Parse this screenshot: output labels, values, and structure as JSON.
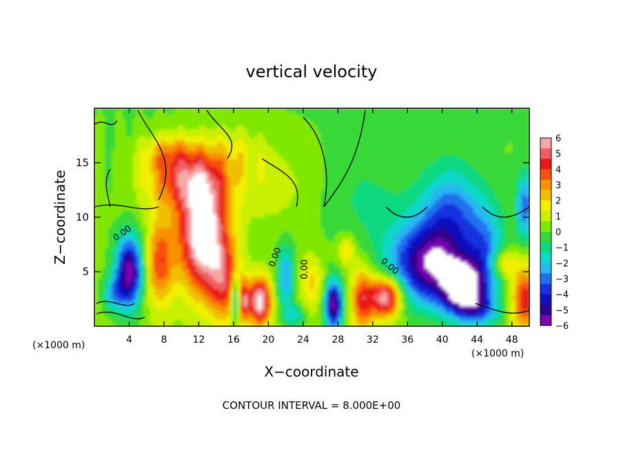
{
  "chart_data": {
    "type": "heatmap",
    "title": "vertical velocity",
    "xlabel": "X−coordinate",
    "ylabel": "Z−coordinate",
    "x_unit_left": "(×1000 m)",
    "x_unit_right": "(×1000 m)",
    "footer": "CONTOUR INTERVAL = 8.000E+00",
    "xlim": [
      0,
      50
    ],
    "ylim": [
      0,
      20
    ],
    "x_ticks": [
      "4",
      "8",
      "12",
      "16",
      "20",
      "24",
      "28",
      "32",
      "36",
      "40",
      "44",
      "48"
    ],
    "y_ticks": [
      "5",
      "10",
      "15"
    ],
    "contour_labels": [
      "0.00",
      "0.00",
      "0.00",
      "0.00"
    ],
    "colorbar": {
      "ticks": [
        "6",
        "5",
        "4",
        "3",
        "2",
        "1",
        "0",
        "−1",
        "−2",
        "−3",
        "−4",
        "−5",
        "−6"
      ],
      "colors": [
        "#f4a8a8",
        "#f06060",
        "#e81818",
        "#f85010",
        "#f89000",
        "#f0c000",
        "#f0f000",
        "#c8f000",
        "#80e800",
        "#38d838",
        "#10d880",
        "#10d8c8",
        "#28b8f0",
        "#2070f0",
        "#1830e0",
        "#1010c0",
        "#30008c",
        "#7a00b0"
      ]
    },
    "blobs": [
      {
        "x": 10.5,
        "z": 13.5,
        "rx": 4.5,
        "rz": 2.8,
        "w": 4.0
      },
      {
        "x": 8.5,
        "z": 16.0,
        "rx": 3.0,
        "rz": 1.8,
        "w": 2.0
      },
      {
        "x": 16.0,
        "z": 16.0,
        "rx": 3.5,
        "rz": 2.5,
        "w": 1.2
      },
      {
        "x": 12.5,
        "z": 8.5,
        "rx": 2.8,
        "rz": 5.2,
        "w": 7.5
      },
      {
        "x": 7.5,
        "z": 6.0,
        "rx": 1.6,
        "rz": 4.0,
        "w": 3.8
      },
      {
        "x": 15.0,
        "z": 4.0,
        "rx": 1.8,
        "rz": 3.5,
        "w": 3.5
      },
      {
        "x": 19.0,
        "z": 2.3,
        "rx": 1.3,
        "rz": 2.2,
        "w": 6.5
      },
      {
        "x": 17.2,
        "z": 2.3,
        "rx": 0.6,
        "rz": 1.8,
        "w": 4.0
      },
      {
        "x": 25.0,
        "z": 4.0,
        "rx": 1.3,
        "rz": 2.5,
        "w": 2.0
      },
      {
        "x": 30.8,
        "z": 2.5,
        "rx": 1.3,
        "rz": 3.0,
        "w": 4.0
      },
      {
        "x": 33.5,
        "z": 2.7,
        "rx": 1.8,
        "rz": 1.8,
        "w": 6.5
      },
      {
        "x": 49.5,
        "z": 2.5,
        "rx": 1.5,
        "rz": 3.0,
        "w": 4.5
      },
      {
        "x": 47.0,
        "z": 5.8,
        "rx": 1.5,
        "rz": 1.3,
        "w": 2.5
      },
      {
        "x": 29.0,
        "z": 7.0,
        "rx": 1.0,
        "rz": 1.5,
        "w": 2.0
      },
      {
        "x": 20.5,
        "z": 13.0,
        "rx": 5.0,
        "rz": 4.0,
        "w": 0.9
      },
      {
        "x": 4.0,
        "z": 5.0,
        "rx": 1.5,
        "rz": 3.2,
        "w": -6.5
      },
      {
        "x": 2.2,
        "z": 3.0,
        "rx": 1.2,
        "rz": 1.6,
        "w": -2.5
      },
      {
        "x": 27.5,
        "z": 2.0,
        "rx": 1.0,
        "rz": 2.2,
        "w": -6.5
      },
      {
        "x": 36.0,
        "z": 6.0,
        "rx": 3.5,
        "rz": 4.0,
        "w": -2.2
      },
      {
        "x": 39.0,
        "z": 5.5,
        "rx": 3.5,
        "rz": 3.5,
        "w": -4.5
      },
      {
        "x": 42.5,
        "z": 3.5,
        "rx": 2.5,
        "rz": 2.5,
        "w": -7.0
      },
      {
        "x": 41.0,
        "z": 10.0,
        "rx": 3.5,
        "rz": 4.5,
        "w": -3.6
      },
      {
        "x": 45.0,
        "z": 7.0,
        "rx": 2.2,
        "rz": 4.0,
        "w": -2.8
      },
      {
        "x": 49.5,
        "z": 11.0,
        "rx": 1.0,
        "rz": 3.0,
        "w": -3.5
      },
      {
        "x": 31.0,
        "z": 11.5,
        "rx": 5.0,
        "rz": 5.0,
        "w": -0.9
      },
      {
        "x": 22.0,
        "z": 4.5,
        "rx": 1.0,
        "rz": 3.0,
        "w": -3.0
      },
      {
        "x": 16.2,
        "z": 2.6,
        "rx": 0.5,
        "rz": 2.0,
        "w": -4.0
      },
      {
        "x": 23.0,
        "z": 1.0,
        "rx": 1.2,
        "rz": 1.0,
        "w": -2.0
      },
      {
        "x": 44.5,
        "z": 1.5,
        "rx": 2.5,
        "rz": 1.5,
        "w": -2.5
      }
    ]
  }
}
